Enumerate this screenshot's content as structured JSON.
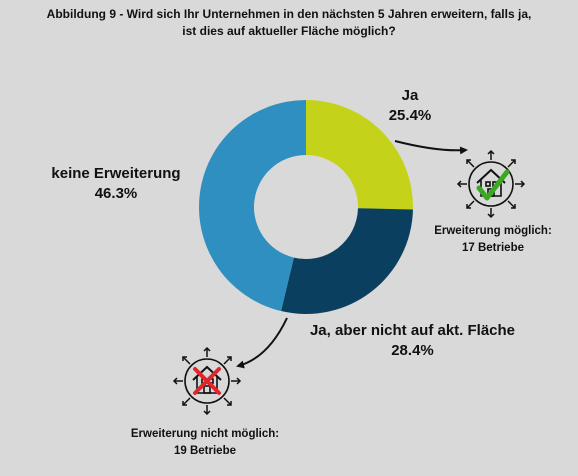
{
  "title": {
    "line1": "Abbildung 9 - Wird sich Ihr Unternehmen in den nächsten 5 Jahren erweitern, falls ja,",
    "line2": "ist dies auf aktueller Fläche möglich?"
  },
  "chart_data": {
    "type": "pie",
    "style": "donut",
    "slices": [
      {
        "label": "Ja",
        "value": 25.4,
        "value_label": "25.4%",
        "color": "#c4d31a"
      },
      {
        "label": "Ja, aber nicht auf akt. Fläche",
        "value": 28.4,
        "value_label": "28.4%",
        "color": "#0b3f5f"
      },
      {
        "label": "keine Erweiterung",
        "value": 46.3,
        "value_label": "46.3%",
        "color": "#2f8fc0"
      }
    ]
  },
  "annotations": {
    "possible": {
      "line1": "Erweiterung möglich:",
      "line2": "17 Betriebe",
      "icon": "house-expand-check-icon"
    },
    "not_possible": {
      "line1": "Erweiterung nicht möglich:",
      "line2": "19 Betriebe",
      "icon": "house-expand-cross-icon"
    }
  }
}
